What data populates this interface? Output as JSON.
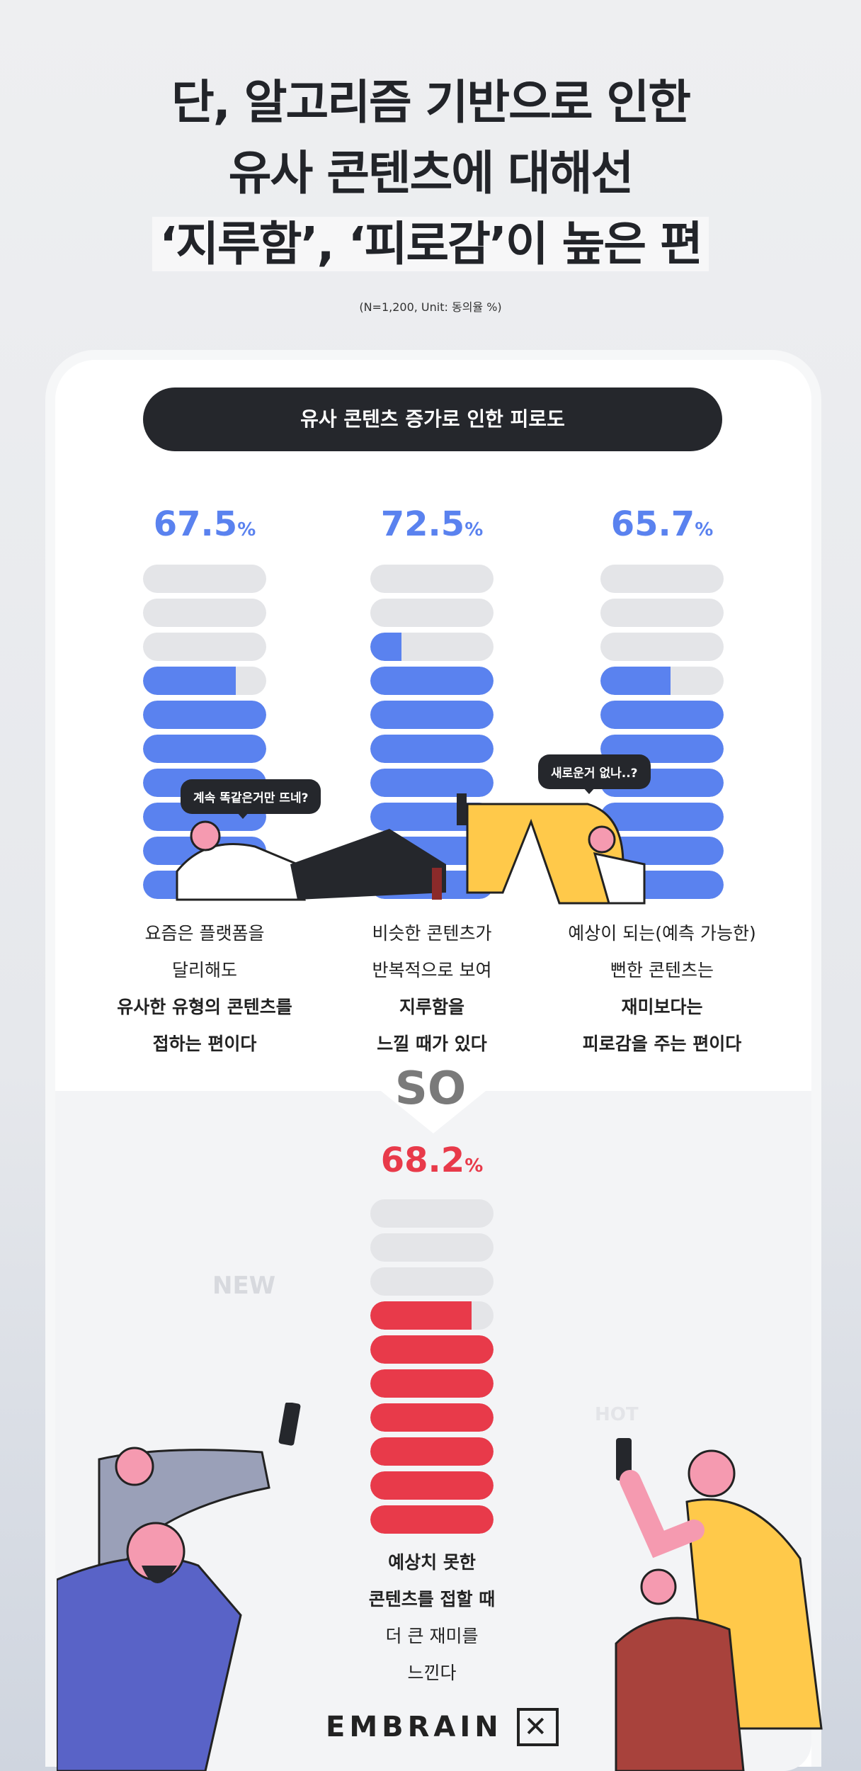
{
  "title": {
    "lines": [
      "단, 알고리즘 기반으로 인한",
      "유사 콘텐츠에 대해선",
      "‘지루함’, ‘피로감’이 높은 편"
    ]
  },
  "subtitle": "(N=1,200, Unit: 동의율 %)",
  "section_title": "유사 콘텐츠 증가로 인한 피로도",
  "connector": "SO",
  "bubbles": [
    "계속 똑같은거만 뜨네?",
    "새로운거 없나..?"
  ],
  "decor": {
    "new": "NEW",
    "hot": "HOT"
  },
  "logo": "EMBRAIN",
  "colors": {
    "blue": "#5a82ef",
    "red": "#e83a4a",
    "empty": "#e4e5e8",
    "dark": "#25272c"
  },
  "chart_data": [
    {
      "type": "bar",
      "unit": "%",
      "max": 100,
      "segments": 10,
      "items": [
        {
          "value": 67.5,
          "value_label": "67.5",
          "lines": [
            "요즘은 플랫폼을",
            "달리해도"
          ],
          "bold_lines": [
            "유사한 유형의 콘텐츠를",
            "접하는 편이다"
          ]
        },
        {
          "value": 72.5,
          "value_label": "72.5",
          "lines": [
            "비슷한 콘텐츠가",
            "반복적으로 보여"
          ],
          "bold_lines": [
            "지루함을",
            "느낄 때가 있다"
          ]
        },
        {
          "value": 65.7,
          "value_label": "65.7",
          "lines": [
            "예상이 되는(예측 가능한)",
            "뻔한 콘텐츠는"
          ],
          "bold_lines": [
            "재미보다는",
            "피로감을 주는 편이다"
          ]
        }
      ]
    },
    {
      "type": "bar",
      "unit": "%",
      "max": 100,
      "segments": 10,
      "items": [
        {
          "value": 68.2,
          "value_label": "68.2",
          "bold_lines": [
            "예상치 못한",
            "콘텐츠를 접할 때"
          ],
          "lines": [
            "더 큰 재미를",
            "느낀다"
          ]
        }
      ]
    }
  ]
}
